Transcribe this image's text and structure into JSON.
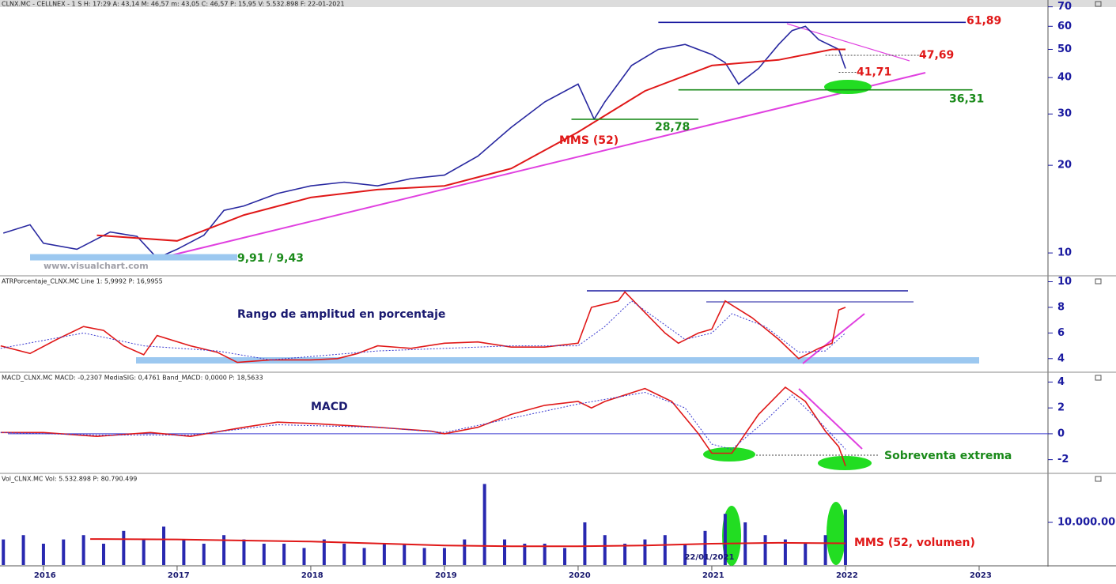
{
  "header": {
    "price": "CLNX.MC - CELLNEX - 1 S  H: 17:29  A: 43,14  M: 46,57  m: 43,05  C: 46,57  P: 15,95  V: 5.532.898  F: 22-01-2021",
    "atr": "ATRPorcentaje_CLNX.MC  Line 1: 5,9992  P: 16,9955",
    "macd": "MACD_CLNX.MC  MACD: -0,2307  MediaSIG: 0,4761  Band_MACD: 0,0000  P: 18,5633",
    "vol": "Vol_CLNX.MC  Vol: 5.532.898  P: 80.790.499"
  },
  "chart_data": [
    {
      "type": "line",
      "log": true,
      "ylim": [
        8.4,
        69.4
      ],
      "yticks": [
        10,
        20,
        30,
        40,
        50,
        60,
        70
      ],
      "watermark": "www.visualchart.com",
      "series": [
        {
          "color": "#2828a0",
          "x": [
            2015.7,
            2015.9,
            2016.0,
            2016.25,
            2016.5,
            2016.7,
            2016.85,
            2017.0,
            2017.2,
            2017.35,
            2017.5,
            2017.75,
            2018.0,
            2018.25,
            2018.5,
            2018.75,
            2019.0,
            2019.25,
            2019.5,
            2019.75,
            2020.0,
            2020.12,
            2020.2,
            2020.4,
            2020.6,
            2020.8,
            2021.0,
            2021.1,
            2021.2,
            2021.35,
            2021.5,
            2021.6,
            2021.7,
            2021.8,
            2021.95,
            2022.0
          ],
          "values": [
            11.7,
            12.5,
            10.8,
            10.3,
            11.8,
            11.4,
            9.6,
            10.3,
            11.5,
            14.0,
            14.5,
            16.0,
            17.0,
            17.5,
            17.0,
            18.0,
            18.5,
            21.5,
            27,
            33,
            38,
            28.8,
            33,
            44,
            50,
            52,
            48,
            45,
            38,
            43,
            52,
            58,
            60,
            54,
            50,
            43
          ]
        },
        {
          "name": "MMS (52)",
          "color": "#e01818",
          "x": [
            2016.4,
            2017.0,
            2017.5,
            2018.0,
            2018.5,
            2019.0,
            2019.5,
            2020.0,
            2020.5,
            2021.0,
            2021.5,
            2021.9,
            2022.0
          ],
          "values": [
            11.5,
            11.0,
            13.5,
            15.5,
            16.5,
            17,
            19.5,
            26,
            36,
            44,
            46,
            50,
            50
          ]
        }
      ],
      "levels": [
        {
          "value": 61.89,
          "label": "61,89",
          "color": "#e01818"
        },
        {
          "value": 47.69,
          "label": "47,69",
          "color": "#e01818"
        },
        {
          "value": 41.71,
          "label": "41,71",
          "color": "#e01818"
        },
        {
          "value": 36.31,
          "label": "36,31",
          "color": "#1a8a1a"
        },
        {
          "value": 28.78,
          "label": "28,78",
          "color": "#1a8a1a"
        }
      ],
      "band": {
        "values": [
          9.91,
          9.43
        ],
        "label": "9,91 / 9,43",
        "color": "#1a8a1a"
      }
    },
    {
      "type": "line",
      "ylim": [
        3.0,
        10.4
      ],
      "yticks": [
        4,
        6,
        8,
        10
      ],
      "annotation": "Rango de amplitud en porcentaje",
      "series": [
        {
          "color": "#e01818",
          "x": [
            2015.68,
            2015.9,
            2016.1,
            2016.3,
            2016.45,
            2016.6,
            2016.75,
            2016.85,
            2017.1,
            2017.3,
            2017.45,
            2017.7,
            2018.0,
            2018.2,
            2018.35,
            2018.5,
            2018.75,
            2019.0,
            2019.25,
            2019.5,
            2019.75,
            2020.0,
            2020.1,
            2020.3,
            2020.35,
            2020.5,
            2020.65,
            2020.75,
            2020.9,
            2021.0,
            2021.1,
            2021.3,
            2021.5,
            2021.65,
            2021.8,
            2021.9,
            2021.95,
            2022.0
          ],
          "values": [
            5.0,
            4.4,
            5.5,
            6.5,
            6.2,
            5.0,
            4.3,
            5.8,
            5.0,
            4.5,
            3.7,
            3.9,
            3.9,
            4.0,
            4.4,
            5.0,
            4.8,
            5.2,
            5.3,
            4.9,
            4.9,
            5.2,
            8.0,
            8.5,
            9.2,
            7.6,
            6.0,
            5.2,
            6.0,
            6.3,
            8.5,
            7.2,
            5.5,
            4.0,
            4.8,
            5.2,
            7.8,
            8.0
          ]
        },
        {
          "color": "#3a3ad0",
          "x": [
            2015.68,
            2016.3,
            2016.75,
            2017.3,
            2017.7,
            2018.5,
            2019.5,
            2020.0,
            2020.2,
            2020.4,
            2020.6,
            2020.8,
            2021.0,
            2021.15,
            2021.4,
            2021.65,
            2021.85,
            2022.0
          ],
          "values": [
            4.8,
            6.0,
            5.0,
            4.6,
            3.9,
            4.6,
            5.0,
            5.0,
            6.5,
            8.5,
            7.0,
            5.5,
            6.0,
            7.5,
            6.5,
            4.5,
            4.6,
            6.0
          ]
        }
      ]
    },
    {
      "type": "line",
      "ylim": [
        -3.0,
        4.7
      ],
      "yticks": [
        -2,
        0,
        2,
        4
      ],
      "annotation": "MACD",
      "annotation2": "Sobreventa extrema",
      "series": [
        {
          "color": "#e01818",
          "x": [
            2015.68,
            2016.0,
            2016.4,
            2016.8,
            2017.1,
            2017.5,
            2017.75,
            2018.0,
            2018.5,
            2018.9,
            2019.0,
            2019.25,
            2019.5,
            2019.75,
            2020.0,
            2020.1,
            2020.2,
            2020.5,
            2020.7,
            2020.9,
            2021.0,
            2021.15,
            2021.35,
            2021.55,
            2021.7,
            2021.85,
            2021.95,
            2022.0
          ],
          "values": [
            0.1,
            0.1,
            -0.2,
            0.1,
            -0.2,
            0.5,
            0.9,
            0.8,
            0.5,
            0.2,
            0.0,
            0.5,
            1.5,
            2.2,
            2.5,
            2.0,
            2.5,
            3.5,
            2.5,
            0.0,
            -1.5,
            -1.5,
            1.5,
            3.6,
            2.5,
            0.2,
            -1.0,
            -2.5
          ]
        },
        {
          "color": "#3a3ad0",
          "x": [
            2015.68,
            2016.4,
            2017.1,
            2017.75,
            2018.5,
            2019.0,
            2019.5,
            2020.0,
            2020.5,
            2020.8,
            2021.0,
            2021.15,
            2021.4,
            2021.6,
            2021.8,
            2022.0
          ],
          "values": [
            0.1,
            -0.1,
            -0.1,
            0.7,
            0.5,
            0.1,
            1.2,
            2.3,
            3.2,
            2.0,
            -0.8,
            -1.2,
            1.0,
            3.0,
            1.0,
            -1.2
          ]
        }
      ]
    },
    {
      "type": "bar",
      "ylim": [
        0,
        21300000
      ],
      "yticks": [
        {
          "value": 10000000,
          "label": "10.000.00"
        }
      ],
      "xlim": [
        2015.675,
        2023.515
      ],
      "xticks": [
        2016,
        2017,
        2018,
        2019,
        2020,
        2021,
        2022,
        2023
      ],
      "cursor_label": "22/01/2021",
      "x": [
        2015.7,
        2015.85,
        2016.0,
        2016.15,
        2016.3,
        2016.45,
        2016.6,
        2016.75,
        2016.9,
        2017.05,
        2017.2,
        2017.35,
        2017.5,
        2017.65,
        2017.8,
        2017.95,
        2018.1,
        2018.25,
        2018.4,
        2018.55,
        2018.7,
        2018.85,
        2019.0,
        2019.15,
        2019.3,
        2019.45,
        2019.6,
        2019.75,
        2019.9,
        2020.05,
        2020.2,
        2020.35,
        2020.5,
        2020.65,
        2020.8,
        2020.95,
        2021.1,
        2021.25,
        2021.4,
        2021.55,
        2021.7,
        2021.85,
        2022.0
      ],
      "values": [
        6000000,
        7000000,
        5000000,
        6000000,
        7000000,
        5000000,
        8000000,
        6000000,
        9000000,
        6000000,
        5000000,
        7000000,
        6000000,
        5000000,
        5000000,
        4000000,
        6000000,
        5000000,
        4000000,
        5000000,
        5000000,
        4000000,
        4000000,
        6000000,
        19000000,
        6000000,
        5000000,
        5000000,
        4000000,
        10000000,
        7000000,
        5000000,
        6000000,
        7000000,
        5000000,
        8000000,
        12000000,
        10000000,
        7000000,
        6000000,
        5000000,
        7000000,
        13000000
      ],
      "color": "#2828b0",
      "series": [
        {
          "name": "MMS (52, volumen)",
          "color": "#e01818",
          "x": [
            2016.35,
            2017.0,
            2018.0,
            2019.0,
            2019.5,
            2020.0,
            2020.5,
            2021.0,
            2021.5,
            2022.0
          ],
          "values": [
            6100000,
            6000000,
            5500000,
            4600000,
            4400000,
            4400000,
            4600000,
            5000000,
            5200000,
            5100000
          ]
        }
      ]
    }
  ]
}
